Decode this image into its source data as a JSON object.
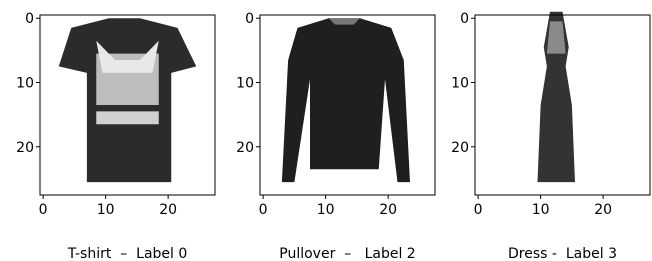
{
  "chart_data": [
    {
      "type": "image",
      "xlabel": "T-shirt  –  Label 0",
      "xlim": [
        -0.5,
        27.5
      ],
      "ylim": [
        27.5,
        -0.5
      ],
      "xticks": [
        0,
        10,
        20
      ],
      "yticks": [
        0,
        10,
        20
      ]
    },
    {
      "type": "image",
      "xlabel": "Pullover  –   Label 2",
      "xlim": [
        -0.5,
        27.5
      ],
      "ylim": [
        27.5,
        -0.5
      ],
      "xticks": [
        0,
        10,
        20
      ],
      "yticks": [
        0,
        10,
        20
      ]
    },
    {
      "type": "image",
      "xlabel": "Dress -  Label 3",
      "xlim": [
        -0.5,
        27.5
      ],
      "ylim": [
        27.5,
        -0.5
      ],
      "xticks": [
        0,
        10,
        20
      ],
      "yticks": [
        0,
        10,
        20
      ]
    }
  ]
}
